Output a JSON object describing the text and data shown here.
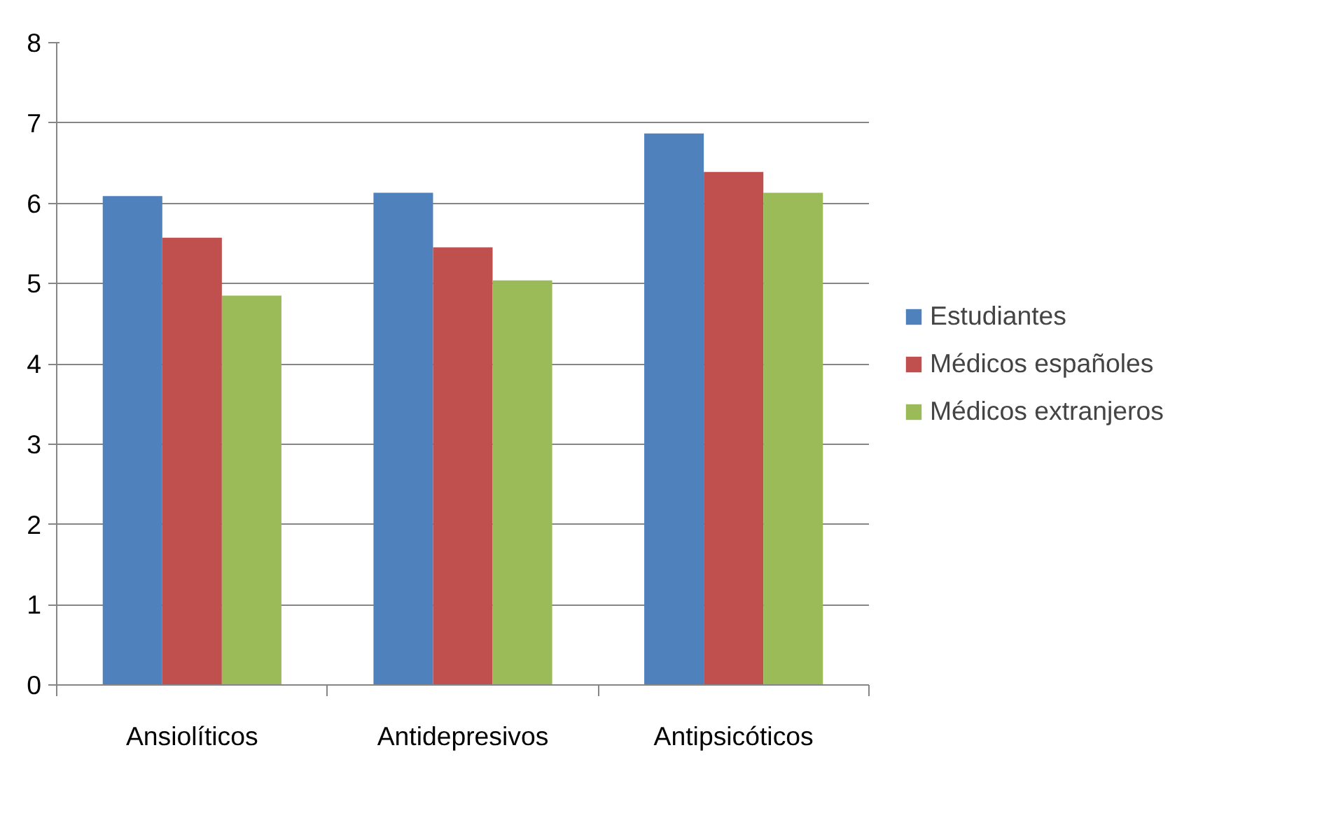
{
  "chart_data": {
    "type": "bar",
    "categories": [
      "Ansiolíticos",
      "Antidepresivos",
      "Antipsicóticos"
    ],
    "series": [
      {
        "name": "Estudiantes",
        "color": "#4f81bd",
        "values": [
          6.09,
          6.13,
          6.87
        ]
      },
      {
        "name": "Médicos españoles",
        "color": "#c0504d",
        "values": [
          5.57,
          5.45,
          6.39
        ]
      },
      {
        "name": "Médicos extranjeros",
        "color": "#9bbb59",
        "values": [
          4.85,
          5.04,
          6.13
        ]
      }
    ],
    "ylim": [
      0,
      8
    ],
    "yticks": [
      0,
      1,
      2,
      3,
      4,
      5,
      6,
      7,
      8
    ],
    "grid": "y",
    "legend": "right"
  }
}
